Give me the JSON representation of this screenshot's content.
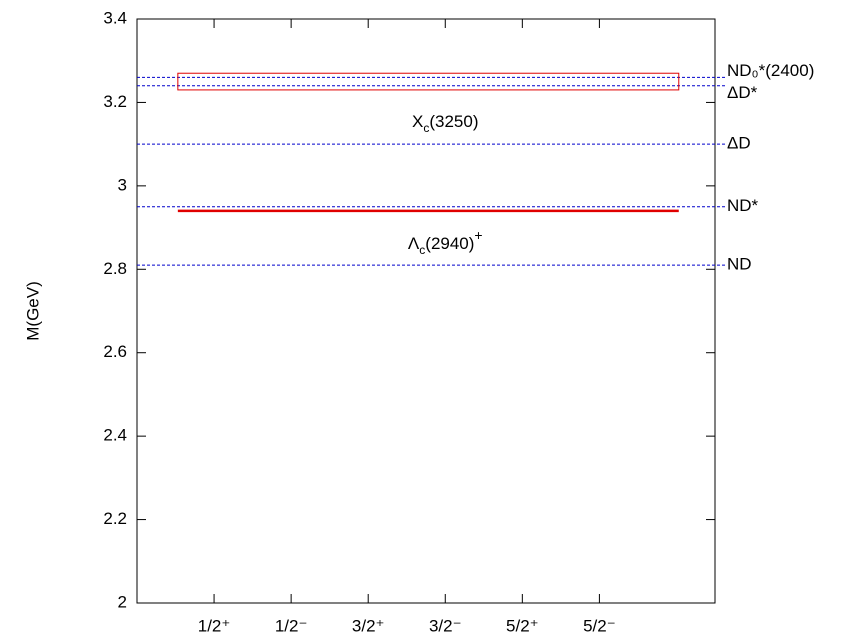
{
  "chart_data": {
    "type": "level",
    "ylabel": "M(GeV)",
    "ylim": [
      2,
      3.4
    ],
    "yticks": [
      2,
      2.2,
      2.4,
      2.6,
      2.8,
      3,
      3.2,
      3.4
    ],
    "xlim": [
      0,
      7.5
    ],
    "xticks": [
      1,
      2,
      3,
      4,
      5,
      6
    ],
    "categories": [
      "1/2⁺",
      "1/2⁻",
      "3/2⁺",
      "3/2⁻",
      "5/2⁺",
      "5/2⁻"
    ],
    "thresholds": {
      "color": "#0000cc",
      "names": [
        "ND₀*(2400)",
        "ΔD*",
        "ΔD",
        "ND*",
        "ND"
      ],
      "values": [
        3.26,
        3.24,
        3.1,
        2.95,
        2.81
      ]
    },
    "states": [
      {
        "label": "X",
        "subscript": "c",
        "suffix": "(3250)",
        "color": "#e00000",
        "value": 3.25,
        "error": 0.02,
        "xrange": [
          0.53,
          7.03
        ]
      },
      {
        "label": "Λ",
        "subscript": "c",
        "suffix": "(2940)",
        "superscript": "+",
        "color": "#e00000",
        "value": 2.94,
        "xrange": [
          0.53,
          7.03
        ]
      }
    ]
  }
}
